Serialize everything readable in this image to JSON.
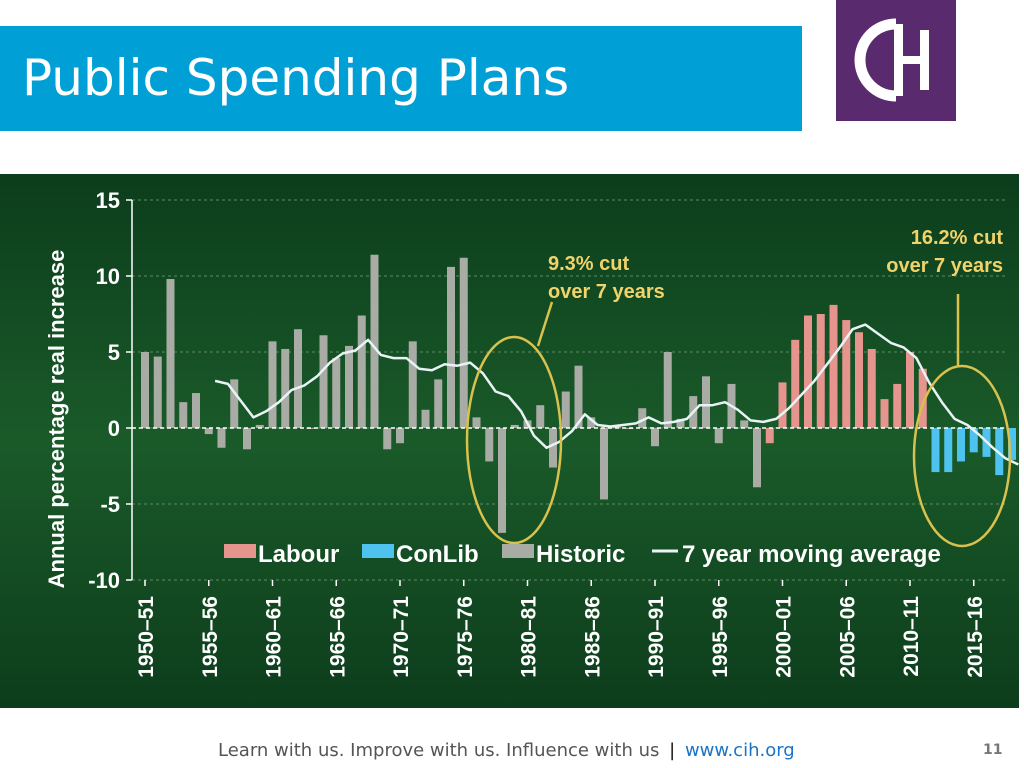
{
  "slide": {
    "title": "Public Spending Plans",
    "logo_text": "CIH",
    "footer_text": "Learn with us. Improve with us. Influence with us",
    "footer_separator": "|",
    "footer_link": "www.cih.org",
    "page_number": "11"
  },
  "colors": {
    "title_bar": "#009fd6",
    "logo_bg": "#5a2a6e",
    "Labour": "#e6958e",
    "ConLib": "#4fc3ef",
    "Historic": "#a9aca5",
    "moving_average": "#e9f3f6",
    "annotation": "#d9c14e"
  },
  "chart_data": {
    "type": "bar",
    "xlabel": "",
    "ylabel": "Annual percentage real increase",
    "ylim": [
      -10,
      15
    ],
    "yticks": [
      15,
      10,
      5,
      0,
      -5,
      -10
    ],
    "grid": true,
    "legend_position": "bottom",
    "legend": [
      "Labour",
      "ConLib",
      "Historic",
      "7 year moving average"
    ],
    "x_tick_labels": [
      "1950–51",
      "1955–56",
      "1960–61",
      "1965–66",
      "1970–71",
      "1975–76",
      "1980–81",
      "1985–86",
      "1990–91",
      "1995–96",
      "2000–01",
      "2005–06",
      "2010–11",
      "2015–16"
    ],
    "start_year": 1950,
    "bars": [
      {
        "x": "1950–51",
        "value": 5.0,
        "group": "Historic"
      },
      {
        "x": "1951–52",
        "value": 4.7,
        "group": "Historic"
      },
      {
        "x": "1952–53",
        "value": 9.8,
        "group": "Historic"
      },
      {
        "x": "1953–54",
        "value": 1.7,
        "group": "Historic"
      },
      {
        "x": "1954–55",
        "value": 2.3,
        "group": "Historic"
      },
      {
        "x": "1955–56",
        "value": -0.4,
        "group": "Historic"
      },
      {
        "x": "1956–57",
        "value": -1.3,
        "group": "Historic"
      },
      {
        "x": "1957–58",
        "value": 3.2,
        "group": "Historic"
      },
      {
        "x": "1958–59",
        "value": -1.4,
        "group": "Historic"
      },
      {
        "x": "1959–60",
        "value": 0.2,
        "group": "Historic"
      },
      {
        "x": "1960–61",
        "value": 5.7,
        "group": "Historic"
      },
      {
        "x": "1961–62",
        "value": 5.2,
        "group": "Historic"
      },
      {
        "x": "1962–63",
        "value": 6.5,
        "group": "Historic"
      },
      {
        "x": "1963–64",
        "value": 0.0,
        "group": "Historic"
      },
      {
        "x": "1964–65",
        "value": 6.1,
        "group": "Historic"
      },
      {
        "x": "1965–66",
        "value": 4.6,
        "group": "Historic"
      },
      {
        "x": "1966–67",
        "value": 5.4,
        "group": "Historic"
      },
      {
        "x": "1967–68",
        "value": 7.4,
        "group": "Historic"
      },
      {
        "x": "1968–69",
        "value": 11.4,
        "group": "Historic"
      },
      {
        "x": "1969–70",
        "value": -1.4,
        "group": "Historic"
      },
      {
        "x": "1970–71",
        "value": -1.0,
        "group": "Historic"
      },
      {
        "x": "1971–72",
        "value": 5.7,
        "group": "Historic"
      },
      {
        "x": "1972–73",
        "value": 1.2,
        "group": "Historic"
      },
      {
        "x": "1973–74",
        "value": 3.2,
        "group": "Historic"
      },
      {
        "x": "1974–75",
        "value": 10.6,
        "group": "Historic"
      },
      {
        "x": "1975–76",
        "value": 11.2,
        "group": "Historic"
      },
      {
        "x": "1976–77",
        "value": 0.7,
        "group": "Historic"
      },
      {
        "x": "1977–78",
        "value": -2.2,
        "group": "Historic"
      },
      {
        "x": "1978–79",
        "value": -6.9,
        "group": "Historic"
      },
      {
        "x": "1979–80",
        "value": 0.2,
        "group": "Historic"
      },
      {
        "x": "1980–81",
        "value": 0.5,
        "group": "Historic"
      },
      {
        "x": "1981–82",
        "value": 1.5,
        "group": "Historic"
      },
      {
        "x": "1982–83",
        "value": -2.6,
        "group": "Historic"
      },
      {
        "x": "1983–84",
        "value": 2.4,
        "group": "Historic"
      },
      {
        "x": "1984–85",
        "value": 4.1,
        "group": "Historic"
      },
      {
        "x": "1985–86",
        "value": 0.7,
        "group": "Historic"
      },
      {
        "x": "1986–87",
        "value": -4.7,
        "group": "Historic"
      },
      {
        "x": "1987–88",
        "value": 0.2,
        "group": "Historic"
      },
      {
        "x": "1988–89",
        "value": 0.0,
        "group": "Historic"
      },
      {
        "x": "1989–90",
        "value": 1.3,
        "group": "Historic"
      },
      {
        "x": "1990–91",
        "value": -1.2,
        "group": "Historic"
      },
      {
        "x": "1991–92",
        "value": 5.0,
        "group": "Historic"
      },
      {
        "x": "1992–93",
        "value": 0.6,
        "group": "Historic"
      },
      {
        "x": "1993–94",
        "value": 2.1,
        "group": "Historic"
      },
      {
        "x": "1994–95",
        "value": 3.4,
        "group": "Historic"
      },
      {
        "x": "1995–96",
        "value": -1.0,
        "group": "Historic"
      },
      {
        "x": "1996–97",
        "value": 2.9,
        "group": "Historic"
      },
      {
        "x": "1997–98",
        "value": 0.5,
        "group": "Historic"
      },
      {
        "x": "1998–99",
        "value": -3.9,
        "group": "Historic"
      },
      {
        "x": "1999–00",
        "value": -1.0,
        "group": "Labour"
      },
      {
        "x": "2000–01",
        "value": 3.0,
        "group": "Labour"
      },
      {
        "x": "2001–02",
        "value": 5.8,
        "group": "Labour"
      },
      {
        "x": "2002–03",
        "value": 7.4,
        "group": "Labour"
      },
      {
        "x": "2003–04",
        "value": 7.5,
        "group": "Labour"
      },
      {
        "x": "2004–05",
        "value": 8.1,
        "group": "Labour"
      },
      {
        "x": "2005–06",
        "value": 7.1,
        "group": "Labour"
      },
      {
        "x": "2006–07",
        "value": 6.3,
        "group": "Labour"
      },
      {
        "x": "2007–08",
        "value": 5.2,
        "group": "Labour"
      },
      {
        "x": "2008–09",
        "value": 1.9,
        "group": "Labour"
      },
      {
        "x": "2009–10",
        "value": 2.9,
        "group": "Labour"
      },
      {
        "x": "2010–11",
        "value": 5.0,
        "group": "Labour"
      },
      {
        "x": "2011–12",
        "value": 3.9,
        "group": "Labour"
      },
      {
        "x": "2012–13",
        "value": -2.9,
        "group": "ConLib"
      },
      {
        "x": "2013–14",
        "value": -2.9,
        "group": "ConLib"
      },
      {
        "x": "2014–15",
        "value": -2.2,
        "group": "ConLib"
      },
      {
        "x": "2015–16",
        "value": -1.6,
        "group": "ConLib"
      },
      {
        "x": "2016–17",
        "value": -1.9,
        "group": "ConLib"
      },
      {
        "x": "2017–18",
        "value": -3.1,
        "group": "ConLib"
      },
      {
        "x": "2018–19",
        "value": -2.1,
        "group": "ConLib"
      }
    ],
    "moving_average": {
      "name": "7 year moving average",
      "points": [
        {
          "year": 1955.5,
          "value": 3.1
        },
        {
          "year": 1956.5,
          "value": 2.9
        },
        {
          "year": 1957.5,
          "value": 1.8
        },
        {
          "year": 1958.5,
          "value": 0.7
        },
        {
          "year": 1959.5,
          "value": 1.1
        },
        {
          "year": 1960.5,
          "value": 1.7
        },
        {
          "year": 1961.5,
          "value": 2.5
        },
        {
          "year": 1962.5,
          "value": 2.8
        },
        {
          "year": 1963.5,
          "value": 3.4
        },
        {
          "year": 1964.5,
          "value": 4.3
        },
        {
          "year": 1965.5,
          "value": 4.9
        },
        {
          "year": 1966.5,
          "value": 5.1
        },
        {
          "year": 1967.5,
          "value": 5.8
        },
        {
          "year": 1968.5,
          "value": 4.8
        },
        {
          "year": 1969.5,
          "value": 4.6
        },
        {
          "year": 1970.5,
          "value": 4.6
        },
        {
          "year": 1971.5,
          "value": 3.9
        },
        {
          "year": 1972.5,
          "value": 3.8
        },
        {
          "year": 1973.5,
          "value": 4.2
        },
        {
          "year": 1974.5,
          "value": 4.1
        },
        {
          "year": 1975.5,
          "value": 4.3
        },
        {
          "year": 1976.5,
          "value": 3.6
        },
        {
          "year": 1977.5,
          "value": 2.4
        },
        {
          "year": 1978.5,
          "value": 2.1
        },
        {
          "year": 1979.5,
          "value": 1.1
        },
        {
          "year": 1980.5,
          "value": -0.5
        },
        {
          "year": 1981.5,
          "value": -1.3
        },
        {
          "year": 1982.5,
          "value": -0.9
        },
        {
          "year": 1983.5,
          "value": -0.2
        },
        {
          "year": 1984.5,
          "value": 0.9
        },
        {
          "year": 1985.5,
          "value": 0.2
        },
        {
          "year": 1986.5,
          "value": 0.1
        },
        {
          "year": 1987.5,
          "value": 0.2
        },
        {
          "year": 1988.5,
          "value": 0.3
        },
        {
          "year": 1989.5,
          "value": 0.7
        },
        {
          "year": 1990.5,
          "value": 0.3
        },
        {
          "year": 1991.5,
          "value": 0.4
        },
        {
          "year": 1992.5,
          "value": 0.6
        },
        {
          "year": 1993.5,
          "value": 1.5
        },
        {
          "year": 1994.5,
          "value": 1.5
        },
        {
          "year": 1995.5,
          "value": 1.7
        },
        {
          "year": 1996.5,
          "value": 1.2
        },
        {
          "year": 1997.5,
          "value": 0.5
        },
        {
          "year": 1998.5,
          "value": 0.4
        },
        {
          "year": 1999.5,
          "value": 0.6
        },
        {
          "year": 2000.5,
          "value": 1.3
        },
        {
          "year": 2001.5,
          "value": 2.2
        },
        {
          "year": 2002.5,
          "value": 3.1
        },
        {
          "year": 2003.5,
          "value": 4.2
        },
        {
          "year": 2004.5,
          "value": 5.3
        },
        {
          "year": 2005.5,
          "value": 6.5
        },
        {
          "year": 2006.5,
          "value": 6.8
        },
        {
          "year": 2007.5,
          "value": 6.2
        },
        {
          "year": 2008.5,
          "value": 5.6
        },
        {
          "year": 2009.5,
          "value": 5.3
        },
        {
          "year": 2010.5,
          "value": 4.6
        },
        {
          "year": 2011.5,
          "value": 3.0
        },
        {
          "year": 2012.5,
          "value": 1.7
        },
        {
          "year": 2013.5,
          "value": 0.6
        },
        {
          "year": 2014.5,
          "value": 0.2
        },
        {
          "year": 2015.5,
          "value": -0.5
        },
        {
          "year": 2016.5,
          "value": -1.3
        },
        {
          "year": 2017.5,
          "value": -2.0
        },
        {
          "year": 2018.5,
          "value": -2.4
        }
      ]
    },
    "annotations": [
      {
        "lines": [
          "9.3% cut",
          "over 7 years"
        ],
        "highlight_years": [
          1976,
          1983
        ]
      },
      {
        "lines": [
          "16.2% cut",
          "over 7 years"
        ],
        "highlight_years": [
          2011,
          2019
        ]
      }
    ]
  }
}
